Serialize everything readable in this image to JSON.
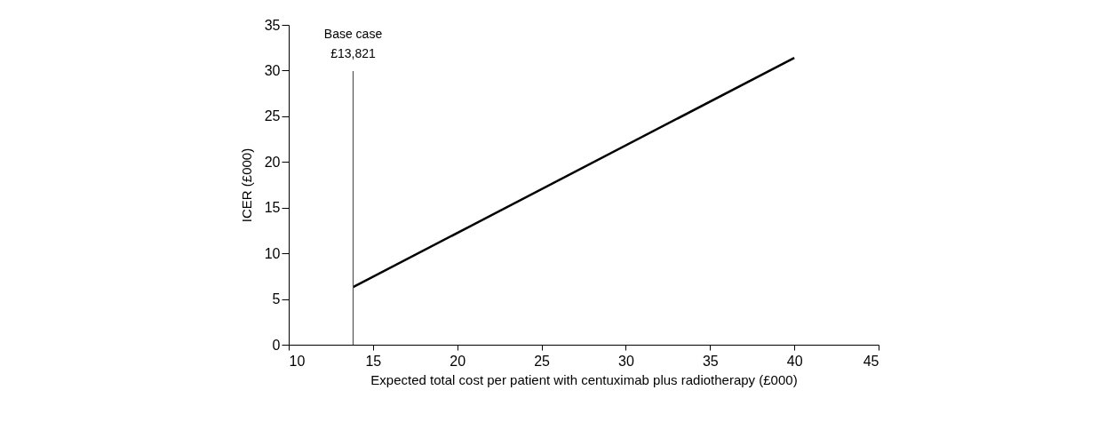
{
  "chart_data": {
    "type": "line",
    "xlabel": "Expected total cost per patient with centuximab plus radiotherapy (£000)",
    "ylabel": "ICER (£000)",
    "x": [
      13.821,
      40
    ],
    "series": [
      {
        "color": "#000000",
        "values": [
          6.3,
          31.4
        ]
      }
    ],
    "xlim": [
      10,
      45
    ],
    "xticks": [
      10,
      15,
      20,
      25,
      30,
      35,
      40,
      45
    ],
    "ylim": [
      0,
      35
    ],
    "yticks": [
      0,
      5,
      10,
      15,
      20,
      25,
      30,
      35
    ],
    "ref_lines": [
      {
        "axis": "x",
        "value": 13.821,
        "label": "Base case\n£13,821",
        "color": "#555555"
      }
    ],
    "grid": false,
    "marker": "none",
    "line_style": "solid"
  }
}
